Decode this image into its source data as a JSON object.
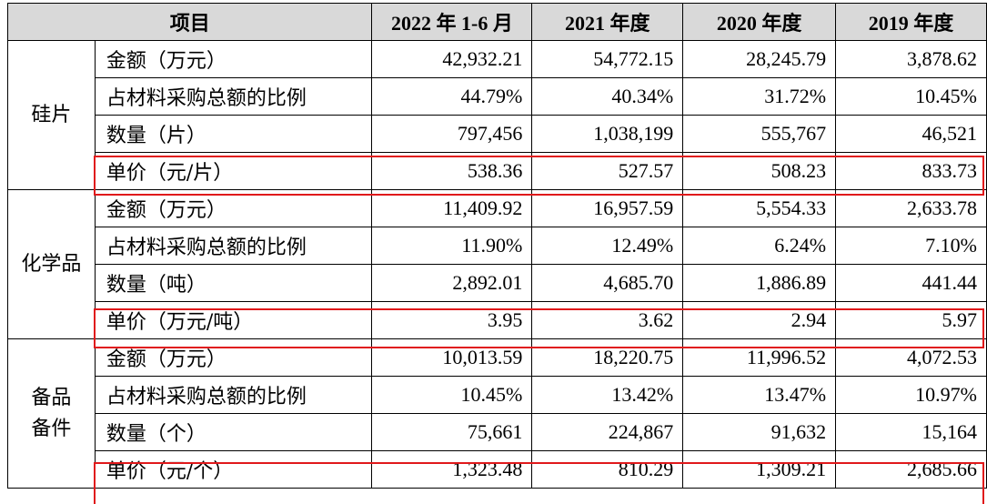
{
  "header": {
    "item": "项目",
    "col1": "2022 年 1-6 月",
    "col2": "2021 年度",
    "col3": "2020 年度",
    "col4": "2019 年度"
  },
  "groups": [
    {
      "category": "硅片",
      "rows": [
        {
          "label": "金额（万元）",
          "values": [
            "42,932.21",
            "54,772.15",
            "28,245.79",
            "3,878.62"
          ]
        },
        {
          "label": "占材料采购总额的比例",
          "values": [
            "44.79%",
            "40.34%",
            "31.72%",
            "10.45%"
          ]
        },
        {
          "label": "数量（片）",
          "values": [
            "797,456",
            "1,038,199",
            "555,767",
            "46,521"
          ]
        },
        {
          "label": "单价（元/片）",
          "values": [
            "538.36",
            "527.57",
            "508.23",
            "833.73"
          ]
        }
      ]
    },
    {
      "category": "化学品",
      "rows": [
        {
          "label": "金额（万元）",
          "values": [
            "11,409.92",
            "16,957.59",
            "5,554.33",
            "2,633.78"
          ]
        },
        {
          "label": "占材料采购总额的比例",
          "values": [
            "11.90%",
            "12.49%",
            "6.24%",
            "7.10%"
          ]
        },
        {
          "label": "数量（吨）",
          "values": [
            "2,892.01",
            "4,685.70",
            "1,886.89",
            "441.44"
          ]
        },
        {
          "label": "单价（万元/吨）",
          "values": [
            "3.95",
            "3.62",
            "2.94",
            "5.97"
          ]
        }
      ]
    },
    {
      "category": "备品\n备件",
      "rows": [
        {
          "label": "金额（万元）",
          "values": [
            "10,013.59",
            "18,220.75",
            "11,996.52",
            "4,072.53"
          ]
        },
        {
          "label": "占材料采购总额的比例",
          "values": [
            "10.45%",
            "13.42%",
            "13.47%",
            "10.97%"
          ]
        },
        {
          "label": "数量（个）",
          "values": [
            "75,661",
            "224,867",
            "91,632",
            "15,164"
          ]
        },
        {
          "label": "单价（元/个）",
          "values": [
            "1,323.48",
            "810.29",
            "1,309.21",
            "2,685.66"
          ]
        }
      ]
    }
  ],
  "highlight_color": "#e0191b"
}
